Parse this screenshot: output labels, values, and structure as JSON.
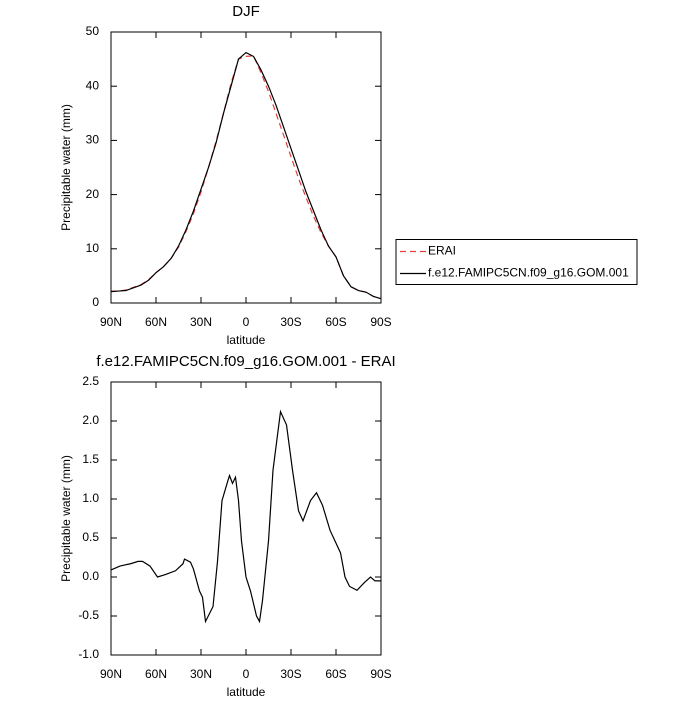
{
  "chart_data": [
    {
      "type": "line",
      "title": "DJF",
      "xlabel": "latitude",
      "ylabel": "Precipitable water (mm)",
      "x": [
        90,
        85,
        80,
        75,
        70,
        65,
        60,
        55,
        50,
        45,
        40,
        35,
        30,
        25,
        20,
        15,
        10,
        5,
        0,
        -5,
        -10,
        -15,
        -20,
        -25,
        -30,
        -35,
        -40,
        -45,
        -50,
        -55,
        -60,
        -65,
        -70,
        -75,
        -80,
        -85,
        -90
      ],
      "series": [
        {
          "name": "ERAI",
          "color": "#e04040",
          "dashed": true,
          "values": [
            2.2,
            2.2,
            2.4,
            2.9,
            3.4,
            4.3,
            5.6,
            6.7,
            8.2,
            10.3,
            13.2,
            16.5,
            20.5,
            25,
            29.8,
            35,
            40.5,
            45,
            45.5,
            45.6,
            42.5,
            39,
            35,
            31,
            27,
            23,
            19.5,
            16,
            13,
            10.5,
            8.5,
            5,
            3,
            2.3,
            2.0,
            1.2,
            0.8
          ]
        },
        {
          "name": "f.e12.FAMIPC5CN.f09_g16.GOM.001",
          "color": "#000000",
          "dashed": false,
          "values": [
            2.1,
            2.2,
            2.3,
            2.8,
            3.3,
            4.2,
            5.6,
            6.7,
            8.2,
            10.5,
            13.5,
            17,
            21,
            25,
            29.5,
            35,
            40,
            45,
            46.2,
            45.5,
            43,
            40,
            36.5,
            32.5,
            28.5,
            24.5,
            20.5,
            17,
            13.5,
            10.5,
            8.5,
            5,
            3,
            2.3,
            2.0,
            1.2,
            0.8
          ]
        }
      ],
      "xlim": [
        90,
        -90
      ],
      "xticks": [
        {
          "value": 90,
          "label": "90N"
        },
        {
          "value": 60,
          "label": "60N"
        },
        {
          "value": 30,
          "label": "30N"
        },
        0,
        {
          "value": -30,
          "label": "30S"
        },
        {
          "value": -60,
          "label": "60S"
        },
        {
          "value": -90,
          "label": "90S"
        }
      ],
      "ylim": [
        0,
        50
      ],
      "yticks": [
        0,
        10,
        20,
        30,
        40,
        50
      ],
      "legend": "right"
    },
    {
      "type": "line",
      "title": "f.e12.FAMIPC5CN.f09_g16.GOM.001 - ERAI",
      "xlabel": "latitude",
      "ylabel": "Precipitable water (mm)",
      "x": [
        90,
        84,
        77,
        72,
        69,
        64,
        59,
        54,
        47,
        42,
        41,
        37,
        35,
        31,
        29,
        27,
        22,
        19,
        16,
        12,
        11,
        9,
        7,
        5,
        3,
        0,
        -3,
        -7,
        -9,
        -11,
        -15,
        -18,
        -23,
        -27,
        -31,
        -35,
        -38,
        -43,
        -47,
        -51,
        -56,
        -63,
        -66,
        -69,
        -74,
        -79,
        -83,
        -86,
        -90
      ],
      "series": [
        {
          "color": "#000000",
          "dashed": false,
          "values": [
            0.09,
            0.14,
            0.17,
            0.2,
            0.2,
            0.14,
            0.0,
            0.03,
            0.08,
            0.17,
            0.23,
            0.19,
            0.1,
            -0.18,
            -0.26,
            -0.57,
            -0.38,
            0.2,
            0.98,
            1.24,
            1.3,
            1.2,
            1.28,
            0.98,
            0.46,
            0,
            -0.18,
            -0.5,
            -0.57,
            -0.3,
            0.46,
            1.37,
            2.12,
            1.95,
            1.37,
            0.85,
            0.72,
            0.98,
            1.08,
            0.92,
            0.6,
            0.31,
            0.0,
            -0.12,
            -0.17,
            -0.07,
            0,
            -0.05,
            -0.05
          ]
        }
      ],
      "xlim": [
        90,
        -90
      ],
      "xticks": [
        {
          "value": 90,
          "label": "90N"
        },
        {
          "value": 60,
          "label": "60N"
        },
        {
          "value": 30,
          "label": "30N"
        },
        0,
        {
          "value": -30,
          "label": "30S"
        },
        {
          "value": -60,
          "label": "60S"
        },
        {
          "value": -90,
          "label": "90S"
        }
      ],
      "ylim": [
        -1,
        2.5
      ],
      "yticks": [
        {
          "value": -1,
          "label": "-1.0"
        },
        -0.5,
        {
          "value": 0,
          "label": "0.0"
        },
        0.5,
        {
          "value": 1,
          "label": "1.0"
        },
        1.5,
        {
          "value": 2,
          "label": "2.0"
        },
        2.5
      ]
    }
  ]
}
